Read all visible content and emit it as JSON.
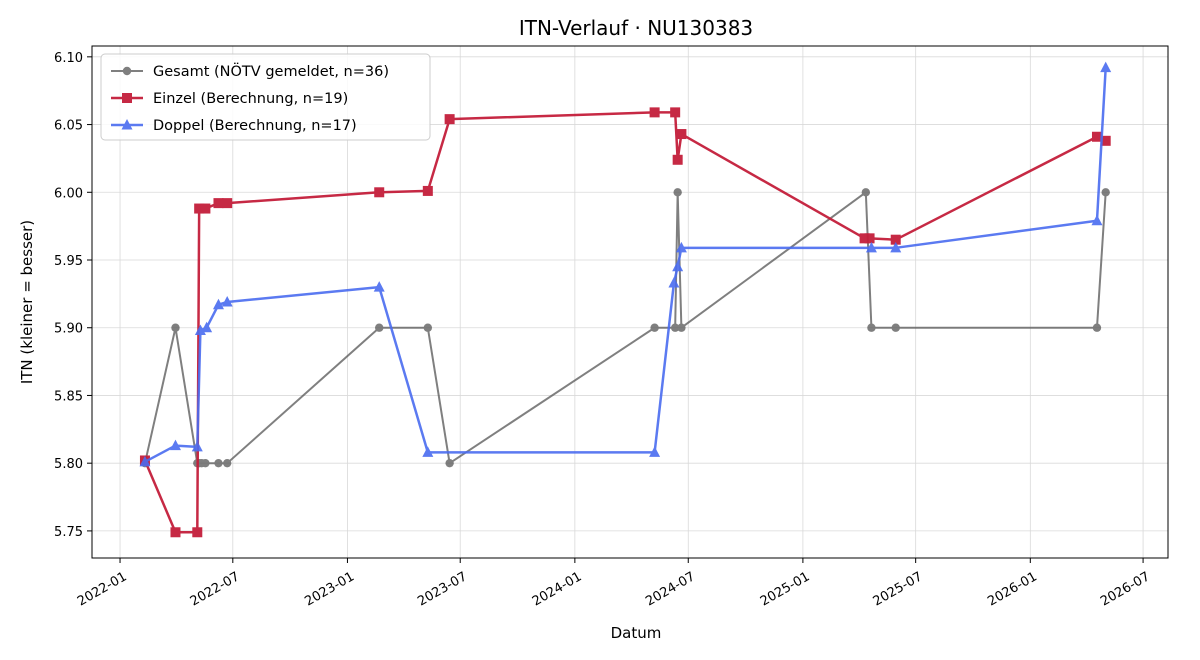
{
  "chart_data": {
    "type": "line",
    "title": "ITN-Verlauf · NU130383",
    "xlabel": "Datum",
    "ylabel": "ITN  (kleiner = besser)",
    "x_type": "date",
    "xlim": [
      "2021-11-17",
      "2026-08-10"
    ],
    "ylim": [
      5.73,
      6.108
    ],
    "x_ticks": [
      "2022-01",
      "2022-07",
      "2023-01",
      "2023-07",
      "2024-01",
      "2024-07",
      "2025-01",
      "2025-07",
      "2026-01",
      "2026-07"
    ],
    "y_ticks": [
      5.75,
      5.8,
      5.85,
      5.9,
      5.95,
      6.0,
      6.05,
      6.1
    ],
    "y_tick_labels": [
      "5.75",
      "5.80",
      "5.85",
      "5.90",
      "5.95",
      "6.00",
      "6.05",
      "6.10"
    ],
    "grid": true,
    "legend_position": "top-left",
    "series": [
      {
        "name": "Gesamt (NÖTV gemeldet, n=36)",
        "color": "#555555",
        "marker": "circle",
        "points": [
          [
            "2022-02-10",
            5.8
          ],
          [
            "2022-03-31",
            5.9
          ],
          [
            "2022-05-05",
            5.8
          ],
          [
            "2022-05-08",
            5.8
          ],
          [
            "2022-05-12",
            5.8
          ],
          [
            "2022-05-18",
            5.8
          ],
          [
            "2022-06-08",
            5.8
          ],
          [
            "2022-06-22",
            5.8
          ],
          [
            "2023-02-21",
            5.9
          ],
          [
            "2023-05-10",
            5.9
          ],
          [
            "2023-06-14",
            5.8
          ],
          [
            "2024-05-08",
            5.9
          ],
          [
            "2024-06-10",
            5.9
          ],
          [
            "2024-06-14",
            6.0
          ],
          [
            "2024-06-20",
            5.9
          ],
          [
            "2025-04-12",
            6.0
          ],
          [
            "2025-04-21",
            5.9
          ],
          [
            "2025-05-30",
            5.9
          ],
          [
            "2026-04-18",
            5.9
          ],
          [
            "2026-05-02",
            6.0
          ]
        ]
      },
      {
        "name": "Einzel (Berechnung, n=19)",
        "color": "#c41e3a",
        "marker": "square",
        "points": [
          [
            "2022-02-10",
            5.802
          ],
          [
            "2022-03-31",
            5.749
          ],
          [
            "2022-05-05",
            5.749
          ],
          [
            "2022-05-08",
            5.988
          ],
          [
            "2022-05-18",
            5.988
          ],
          [
            "2022-06-08",
            5.992
          ],
          [
            "2022-06-22",
            5.992
          ],
          [
            "2023-02-21",
            6.0
          ],
          [
            "2023-05-10",
            6.001
          ],
          [
            "2023-06-14",
            6.054
          ],
          [
            "2024-05-08",
            6.059
          ],
          [
            "2024-06-10",
            6.059
          ],
          [
            "2024-06-14",
            6.024
          ],
          [
            "2024-06-20",
            6.043
          ],
          [
            "2025-04-10",
            5.966
          ],
          [
            "2025-04-18",
            5.966
          ],
          [
            "2025-05-30",
            5.965
          ],
          [
            "2026-04-18",
            6.041
          ],
          [
            "2026-05-02",
            6.038
          ]
        ]
      },
      {
        "name": "Doppel (Berechnung, n=17)",
        "color": "#4a6cf0",
        "marker": "triangle",
        "points": [
          [
            "2022-02-10",
            5.801
          ],
          [
            "2022-03-31",
            5.813
          ],
          [
            "2022-05-05",
            5.812
          ],
          [
            "2022-05-10",
            5.898
          ],
          [
            "2022-05-20",
            5.9
          ],
          [
            "2022-06-08",
            5.917
          ],
          [
            "2022-06-22",
            5.919
          ],
          [
            "2023-02-21",
            5.93
          ],
          [
            "2023-05-10",
            5.808
          ],
          [
            "2024-05-08",
            5.808
          ],
          [
            "2024-06-08",
            5.933
          ],
          [
            "2024-06-14",
            5.945
          ],
          [
            "2024-06-20",
            5.959
          ],
          [
            "2025-04-21",
            5.959
          ],
          [
            "2025-05-30",
            5.959
          ],
          [
            "2026-04-18",
            5.979
          ],
          [
            "2026-05-02",
            6.092
          ]
        ]
      }
    ]
  }
}
